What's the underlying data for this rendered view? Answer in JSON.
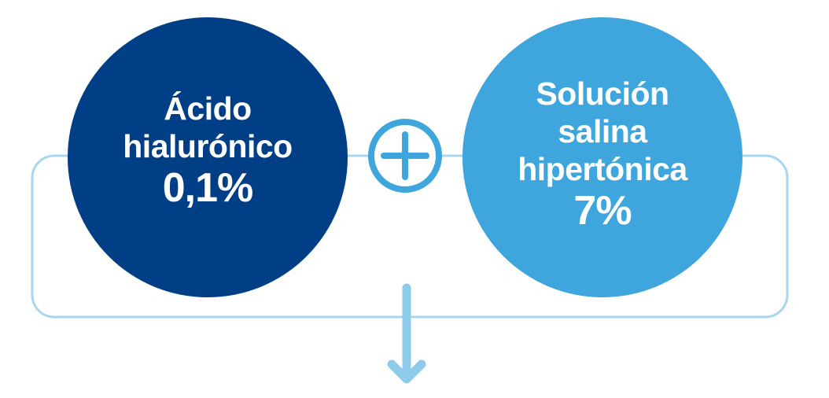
{
  "colors": {
    "dark_blue": "#003f86",
    "light_blue": "#3ea6dd",
    "outline": "#a8d6ee",
    "arrow": "#8ecbeb",
    "plus": "#3ea6dd"
  },
  "left_circle": {
    "line1": "Ácido",
    "line2": "hialurónico",
    "value": "0,1%"
  },
  "right_circle": {
    "line1": "Solución",
    "line2": "salina",
    "line3": "hipertónica",
    "value": "7%"
  },
  "connector": {
    "icon": "plus-icon"
  },
  "result_arrow": {
    "icon": "arrow-down-icon"
  }
}
